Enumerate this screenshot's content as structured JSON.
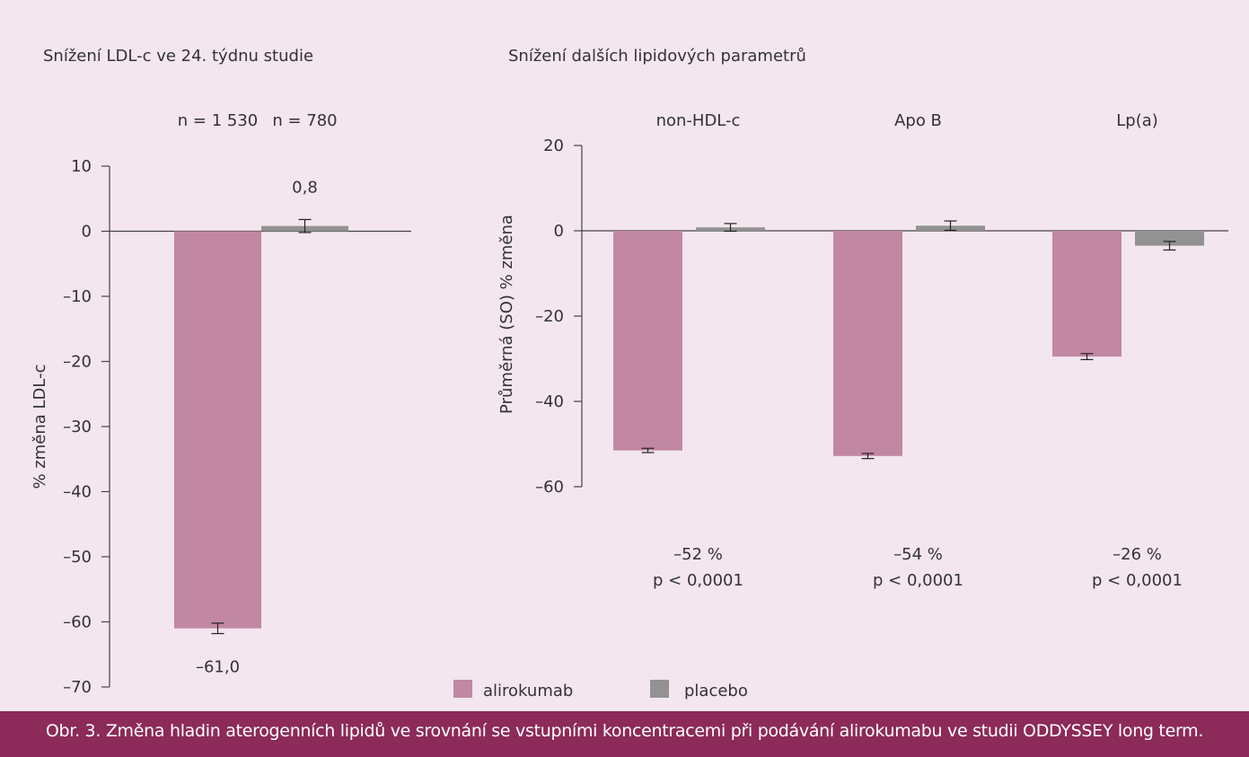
{
  "chart_data": [
    {
      "type": "bar",
      "title": "Snížení LDL-c ve 24. týdnu studie",
      "ylabel": "% změna LDL-c",
      "ylim": [
        -70,
        10
      ],
      "yticks": [
        10,
        0,
        -10,
        -20,
        -30,
        -40,
        -50,
        -60,
        -70
      ],
      "ytick_labels": [
        "10",
        "0",
        "–10",
        "–20",
        "–30",
        "–40",
        "–50",
        "–60",
        "–70"
      ],
      "grid": false,
      "series": [
        {
          "name": "alirokumab",
          "values": [
            -61.0
          ],
          "error": [
            0.8
          ],
          "n_label": "n = 1 530",
          "value_label": "–61,0"
        },
        {
          "name": "placebo",
          "values": [
            0.8
          ],
          "error": [
            1.0
          ],
          "n_label": "n = 780",
          "value_label": "0,8"
        }
      ]
    },
    {
      "type": "bar",
      "title": "Snížení dalších lipidových parametrů",
      "ylabel": "Průměrná (SO) % změna",
      "ylim": [
        -60,
        20
      ],
      "yticks": [
        20,
        0,
        -20,
        -40,
        -60
      ],
      "ytick_labels": [
        "20",
        "0",
        "–20",
        "–40",
        "–60"
      ],
      "grid": false,
      "categories": [
        "non-HDL-c",
        "Apo B",
        "Lp(a)"
      ],
      "series": [
        {
          "name": "alirokumab",
          "values": [
            -51.5,
            -52.8,
            -29.5
          ],
          "error": [
            0.5,
            0.6,
            0.7
          ]
        },
        {
          "name": "placebo",
          "values": [
            0.8,
            1.2,
            -3.5
          ],
          "error": [
            0.9,
            1.1,
            1.0
          ]
        }
      ],
      "annotations": [
        {
          "difference": "–52 %",
          "p": "p < 0,0001"
        },
        {
          "difference": "–54 %",
          "p": "p < 0,0001"
        },
        {
          "difference": "–26 %",
          "p": "p < 0,0001"
        }
      ]
    }
  ],
  "legend": [
    {
      "label": "alirokumab",
      "color": "#c187a3"
    },
    {
      "label": "placebo",
      "color": "#929292"
    }
  ],
  "colors": {
    "alirokumab": "#c187a3",
    "placebo": "#929292",
    "caption_bar": "#8c2a59",
    "background": "#f3e6ee"
  },
  "caption": "Obr. 3. Změna hladin aterogenních lipidů ve srovnání se vstupními koncentracemi při podávání alirokumabu ve studii ODDYSSEY long term."
}
